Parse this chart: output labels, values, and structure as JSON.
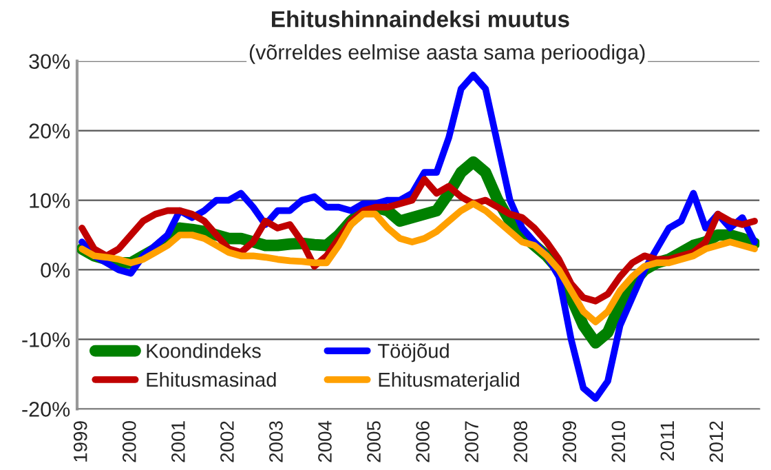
{
  "chart_data": {
    "type": "line",
    "title": "Ehitushinnaindeksi muutus",
    "subtitle": "(võrreldes eelmise aasta sama perioodiga)",
    "x": [
      1999.0,
      1999.25,
      1999.5,
      1999.75,
      2000.0,
      2000.25,
      2000.5,
      2000.75,
      2001.0,
      2001.25,
      2001.5,
      2001.75,
      2002.0,
      2002.25,
      2002.5,
      2002.75,
      2003.0,
      2003.25,
      2003.5,
      2003.75,
      2004.0,
      2004.25,
      2004.5,
      2004.75,
      2005.0,
      2005.25,
      2005.5,
      2005.75,
      2006.0,
      2006.25,
      2006.5,
      2006.75,
      2007.0,
      2007.25,
      2007.5,
      2007.75,
      2008.0,
      2008.25,
      2008.5,
      2008.75,
      2009.0,
      2009.25,
      2009.5,
      2009.75,
      2010.0,
      2010.25,
      2010.5,
      2010.75,
      2011.0,
      2011.25,
      2011.5,
      2011.75,
      2012.0,
      2012.25,
      2012.5,
      2012.75
    ],
    "series": [
      {
        "name": "Koondindeks",
        "color": "#008000",
        "values": [
          3,
          2,
          1.5,
          1,
          1,
          2,
          3,
          4.5,
          6,
          5.8,
          5.5,
          5,
          4.5,
          4.5,
          4,
          3.5,
          3.5,
          3.7,
          3.8,
          3.6,
          3.5,
          5,
          7,
          8.5,
          9,
          8.5,
          7,
          7.5,
          8,
          8.5,
          11,
          14,
          15.5,
          14,
          10,
          7,
          5,
          3.5,
          2,
          0,
          -4,
          -8,
          -10.5,
          -9,
          -5,
          -2,
          0,
          1,
          1.5,
          2.5,
          3.5,
          4,
          5,
          5,
          4.5,
          3.8
        ]
      },
      {
        "name": "Tööjõud",
        "color": "#0000ff",
        "values": [
          4,
          2,
          1,
          0,
          -0.5,
          2,
          3.5,
          5,
          8.5,
          7.5,
          8.5,
          10,
          10,
          11,
          9,
          6.5,
          8.5,
          8.5,
          10,
          10.5,
          9,
          9,
          8.5,
          9.5,
          9.5,
          10,
          10,
          11,
          14,
          14,
          19,
          26,
          28,
          26,
          18,
          10,
          6,
          4,
          2,
          -1,
          -10,
          -17,
          -18.5,
          -16,
          -8,
          -4,
          0,
          3,
          6,
          7,
          11,
          6,
          8,
          6,
          7.5,
          4
        ]
      },
      {
        "name": "Ehitusmasinad",
        "color": "#c00000",
        "values": [
          6,
          3,
          2,
          3,
          5,
          7,
          8,
          8.5,
          8.5,
          8,
          7,
          5,
          3,
          2.5,
          4,
          7,
          6,
          6.5,
          4,
          0.5,
          2,
          4.5,
          7,
          8.5,
          9,
          9,
          9.5,
          10,
          13,
          11,
          12,
          10.5,
          9.5,
          10,
          9,
          8,
          7.5,
          6,
          4,
          1.5,
          -2,
          -4,
          -4.5,
          -3.5,
          -1,
          1,
          2,
          1.5,
          1.5,
          2,
          2.5,
          4,
          8,
          7,
          6.5,
          7
        ]
      },
      {
        "name": "Ehitusmaterjalid",
        "color": "#ffa000",
        "values": [
          3,
          2,
          1.8,
          1.5,
          1,
          1.5,
          2.5,
          3.5,
          5,
          5,
          4.5,
          3.5,
          2.5,
          2,
          2,
          1.8,
          1.5,
          1.3,
          1.2,
          1,
          1,
          3.5,
          6.5,
          8,
          8,
          6,
          4.5,
          4,
          4.5,
          5.5,
          7,
          8.5,
          9.5,
          8.5,
          7,
          5.5,
          4,
          3.5,
          2,
          0,
          -3,
          -6,
          -7.5,
          -6,
          -3,
          -1,
          0.5,
          1,
          1,
          1.5,
          2,
          3,
          3.5,
          4,
          3.5,
          3
        ]
      }
    ],
    "xlim": [
      1998.9,
      2012.85
    ],
    "xticks": [
      1999,
      2000,
      2001,
      2002,
      2003,
      2004,
      2005,
      2006,
      2007,
      2008,
      2009,
      2010,
      2011,
      2012
    ],
    "ylim": [
      -20,
      30
    ],
    "yticks": [
      {
        "value": -20,
        "label": "-20%"
      },
      {
        "value": -10,
        "label": "-10%"
      },
      {
        "value": 0,
        "label": "0%"
      },
      {
        "value": 10,
        "label": "10%"
      },
      {
        "value": 20,
        "label": "20%"
      },
      {
        "value": 30,
        "label": "30%"
      }
    ],
    "grid": "y",
    "legend": "bottom left",
    "line_style": "solid"
  }
}
